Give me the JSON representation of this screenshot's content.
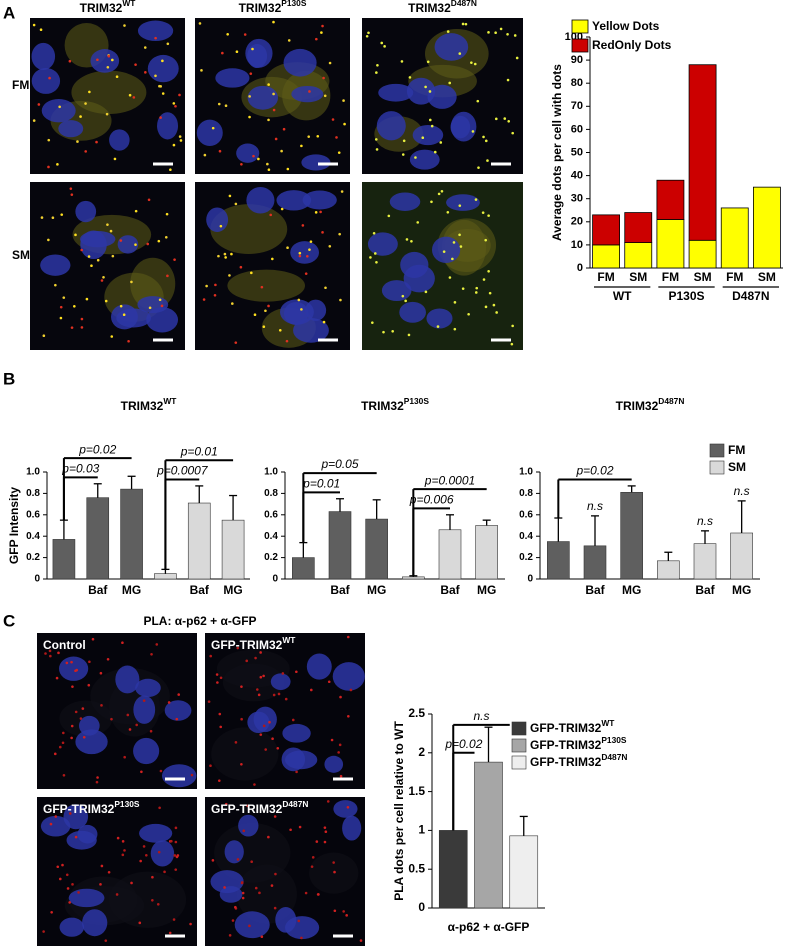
{
  "panel_labels": [
    "A",
    "B",
    "C"
  ],
  "panel_a": {
    "columns": [
      {
        "text": "TRIM32",
        "sup": "WT"
      },
      {
        "text": "TRIM32",
        "sup": "P130S"
      },
      {
        "text": "TRIM32",
        "sup": "D487N"
      }
    ],
    "rows": [
      "FM",
      "SM"
    ]
  },
  "panel_c": {
    "title": "PLA: α-p62 + α-GFP",
    "images": [
      {
        "text": "Control"
      },
      {
        "text": "GFP-TRIM32",
        "sup": "WT"
      },
      {
        "text": "GFP-TRIM32",
        "sup": "P130S"
      },
      {
        "text": "GFP-TRIM32",
        "sup": "D487N"
      }
    ]
  },
  "chart_data": [
    {
      "type": "stacked_bar",
      "y_label": "Average dots per cell with dots",
      "categories": [
        "FM",
        "SM",
        "FM",
        "SM",
        "FM",
        "SM"
      ],
      "group_labels": [
        "WT",
        "P130S",
        "D487N"
      ],
      "series": [
        {
          "name": "Yellow Dots",
          "color": "#ffff00",
          "values": [
            10,
            11,
            21,
            12,
            26,
            35
          ]
        },
        {
          "name": "RedOnly Dots",
          "color": "#cc0000",
          "values": [
            13,
            13,
            17,
            76,
            0,
            0
          ]
        }
      ],
      "ylim": [
        0,
        100
      ],
      "yticks": [
        0,
        10,
        20,
        30,
        40,
        50,
        60,
        70,
        80,
        90,
        100
      ],
      "legend": "top-left"
    },
    {
      "type": "bar",
      "title": "TRIM32",
      "title_sup": "WT",
      "y_label": "GFP Intensity",
      "categories": [
        null,
        "Baf",
        "MG",
        null,
        "Baf",
        "MG"
      ],
      "series": [
        {
          "name": "FM",
          "color": "#5f5f5f",
          "values": [
            0.37,
            0.76,
            0.84,
            null,
            null,
            null
          ],
          "errors": [
            0.18,
            0.13,
            0.12,
            null,
            null,
            null
          ]
        },
        {
          "name": "SM",
          "color": "#d9d9d9",
          "values": [
            null,
            null,
            null,
            0.05,
            0.71,
            0.55
          ],
          "errors": [
            null,
            null,
            null,
            0.04,
            0.16,
            0.23
          ]
        }
      ],
      "ylim": [
        0,
        1
      ],
      "yticks": [
        0,
        0.2,
        0.4,
        0.6,
        0.8,
        {
          "value": 1,
          "label": "1.0"
        }
      ],
      "legend": false,
      "annotations": [
        {
          "text": "p=0.02",
          "from": 0,
          "to": 2
        },
        {
          "text": "p=0.03",
          "from": 0,
          "to": 1
        },
        {
          "text": "p=0.01",
          "from": 3,
          "to": 5
        },
        {
          "text": "p=0.0007",
          "from": 3,
          "to": 4
        }
      ]
    },
    {
      "type": "bar",
      "title": "TRIM32",
      "title_sup": "P130S",
      "categories": [
        null,
        "Baf",
        "MG",
        null,
        "Baf",
        "MG"
      ],
      "series": [
        {
          "name": "FM",
          "color": "#5f5f5f",
          "values": [
            0.2,
            0.63,
            0.56,
            null,
            null,
            null
          ],
          "errors": [
            0.14,
            0.12,
            0.18,
            null,
            null,
            null
          ]
        },
        {
          "name": "SM",
          "color": "#d9d9d9",
          "values": [
            null,
            null,
            null,
            0.02,
            0.46,
            0.5
          ],
          "errors": [
            null,
            null,
            null,
            0.01,
            0.14,
            0.05
          ]
        }
      ],
      "ylim": [
        0,
        1
      ],
      "yticks": [
        0,
        0.2,
        0.4,
        0.6,
        0.8,
        {
          "value": 1,
          "label": "1.0"
        }
      ],
      "legend": false,
      "annotations": [
        {
          "text": "p=0.05",
          "from": 0,
          "to": 2
        },
        {
          "text": "p=0.01",
          "from": 0,
          "to": 1
        },
        {
          "text": "p=0.0001",
          "from": 3,
          "to": 5
        },
        {
          "text": "p=0.006",
          "from": 3,
          "to": 4
        }
      ]
    },
    {
      "type": "bar",
      "title": "TRIM32",
      "title_sup": "D487N",
      "categories": [
        null,
        "Baf",
        "MG",
        null,
        "Baf",
        "MG"
      ],
      "series": [
        {
          "name": "FM",
          "color": "#5f5f5f",
          "values": [
            0.35,
            0.31,
            0.81,
            null,
            null,
            null
          ],
          "errors": [
            0.22,
            0.28,
            0.06,
            null,
            null,
            null
          ]
        },
        {
          "name": "SM",
          "color": "#d9d9d9",
          "values": [
            null,
            null,
            null,
            0.17,
            0.33,
            0.43
          ],
          "errors": [
            null,
            null,
            null,
            0.08,
            0.12,
            0.3
          ]
        }
      ],
      "ylim": [
        0,
        1
      ],
      "yticks": [
        0,
        0.2,
        0.4,
        0.6,
        0.8,
        {
          "value": 1,
          "label": "1.0"
        }
      ],
      "legend": true,
      "annotations": [
        {
          "text": "p=0.02",
          "from": 0,
          "to": 2
        },
        {
          "text": "n.s",
          "at": 1
        },
        {
          "text": "n.s",
          "at": 4
        },
        {
          "text": "n.s",
          "at": 5
        }
      ]
    },
    {
      "type": "grouped_bar",
      "y_label": "PLA dots per cell relative to WT",
      "categories": [
        "α-p62 + α-GFP"
      ],
      "series": [
        {
          "name": "GFP-TRIM32",
          "name_sup": "WT",
          "color": "#3a3a3a",
          "values": [
            1
          ],
          "errors": [
            null
          ]
        },
        {
          "name": "GFP-TRIM32",
          "name_sup": "P130S",
          "color": "#a6a6a6",
          "values": [
            1.88
          ],
          "errors": [
            0.45
          ]
        },
        {
          "name": "GFP-TRIM32",
          "name_sup": "D487N",
          "color": "#eeeeee",
          "values": [
            0.93
          ],
          "errors": [
            0.25
          ]
        }
      ],
      "ylim": [
        0,
        2.5
      ],
      "yticks": [
        0,
        0.5,
        1,
        1.5,
        2,
        2.5
      ],
      "legend": "top-right",
      "annotations": [
        {
          "text": "p=0.02",
          "from": 0,
          "to": 1
        },
        {
          "text": "n.s",
          "from": 0,
          "to": 2
        }
      ]
    }
  ]
}
